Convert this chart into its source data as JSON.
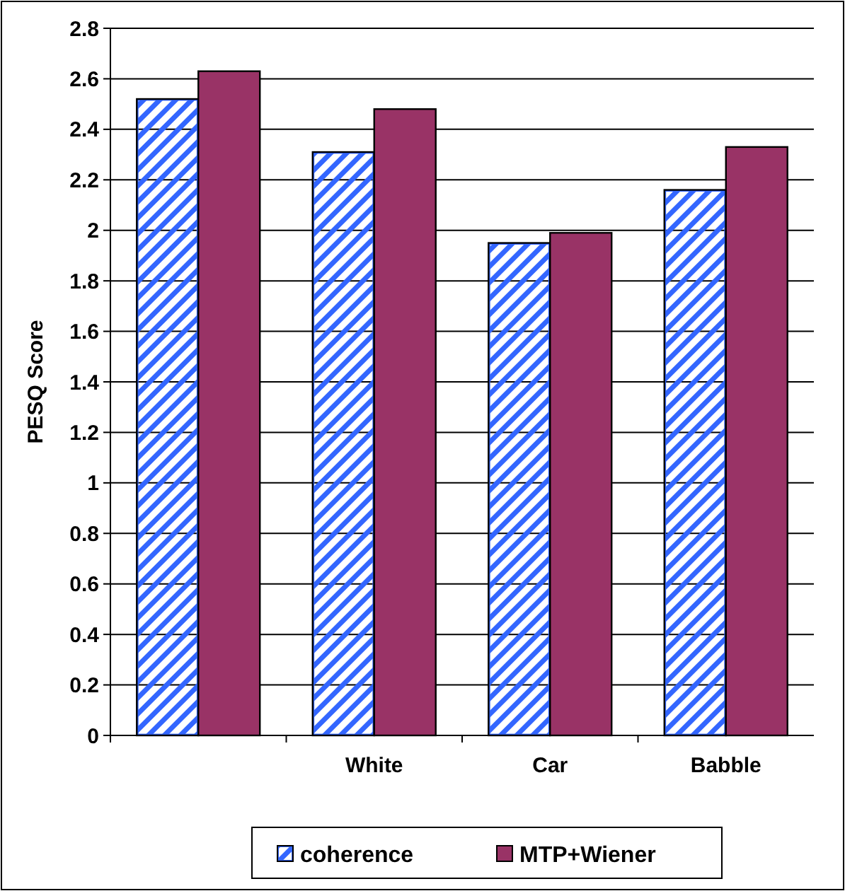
{
  "chart_data": {
    "type": "bar",
    "ylabel": "PESQ Score",
    "categories": [
      null,
      "White",
      "Car",
      "Babble"
    ],
    "series": [
      {
        "name": "coherence",
        "color": "#3366ff",
        "values": [
          2.52,
          2.31,
          1.95,
          2.16
        ]
      },
      {
        "name": "MTP+Wiener",
        "color": "#993366",
        "values": [
          2.63,
          2.48,
          1.99,
          2.33
        ]
      }
    ],
    "ylim": [
      0,
      2.8
    ],
    "yticks": [
      0,
      0.2,
      0.4,
      0.6,
      0.8,
      1,
      1.2,
      1.4,
      1.6,
      1.8,
      2,
      2.2,
      2.4,
      2.6,
      2.8
    ],
    "grid": "y",
    "legend": "bottom"
  }
}
